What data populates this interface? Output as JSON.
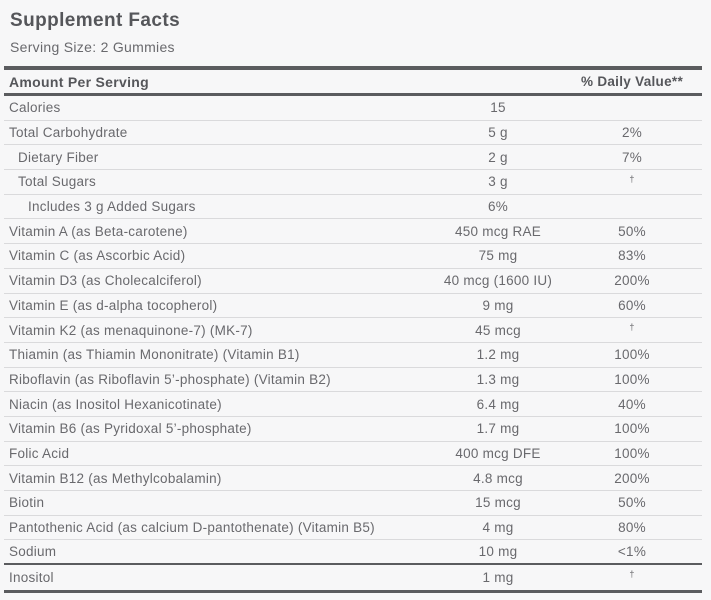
{
  "label": {
    "title": "Supplement Facts",
    "serving_size": "Serving Size: 2 Gummies",
    "header": {
      "amount": "Amount Per Serving",
      "dv": "% Daily Value**"
    },
    "rows": [
      {
        "name": "Calories",
        "amount": "15",
        "dv": "",
        "indent": 0
      },
      {
        "name": "Total Carbohydrate",
        "amount": "5 g",
        "dv": "2%",
        "indent": 0
      },
      {
        "name": "Dietary Fiber",
        "amount": "2 g",
        "dv": "7%",
        "indent": 1
      },
      {
        "name": "Total Sugars",
        "amount": "3 g",
        "dv": "†",
        "indent": 1
      },
      {
        "name": "Includes 3 g Added Sugars",
        "amount": "6%",
        "dv": "",
        "indent": 2
      },
      {
        "name": "Vitamin A (as Beta-carotene)",
        "amount": "450 mcg RAE",
        "dv": "50%",
        "indent": 0
      },
      {
        "name": "Vitamin C (as Ascorbic Acid)",
        "amount": "75 mg",
        "dv": "83%",
        "indent": 0
      },
      {
        "name": "Vitamin D3 (as Cholecalciferol)",
        "amount": "40 mcg (1600 IU)",
        "dv": "200%",
        "indent": 0
      },
      {
        "name": "Vitamin E (as d-alpha tocopherol)",
        "amount": "9 mg",
        "dv": "60%",
        "indent": 0
      },
      {
        "name": "Vitamin K2 (as menaquinone-7) (MK-7)",
        "amount": "45 mcg",
        "dv": "†",
        "indent": 0
      },
      {
        "name": "Thiamin (as Thiamin Mononitrate) (Vitamin B1)",
        "amount": "1.2 mg",
        "dv": "100%",
        "indent": 0
      },
      {
        "name": "Riboflavin (as Riboflavin 5’-phosphate) (Vitamin B2)",
        "amount": "1.3 mg",
        "dv": "100%",
        "indent": 0
      },
      {
        "name": "Niacin (as Inositol Hexanicotinate)",
        "amount": "6.4 mg",
        "dv": "40%",
        "indent": 0
      },
      {
        "name": "Vitamin B6 (as Pyridoxal 5’-phosphate)",
        "amount": "1.7 mg",
        "dv": "100%",
        "indent": 0
      },
      {
        "name": "Folic Acid",
        "amount": "400 mcg DFE",
        "dv": "100%",
        "indent": 0
      },
      {
        "name": "Vitamin B12 (as Methylcobalamin)",
        "amount": "4.8 mcg",
        "dv": "200%",
        "indent": 0
      },
      {
        "name": "Biotin",
        "amount": "15 mcg",
        "dv": "50%",
        "indent": 0
      },
      {
        "name": "Pantothenic Acid (as calcium D-pantothenate) (Vitamin B5)",
        "amount": "4 mg",
        "dv": "80%",
        "indent": 0
      },
      {
        "name": "Sodium",
        "amount": "10 mg",
        "dv": "<1%",
        "indent": 0,
        "thick_below": true
      },
      {
        "name": "Inositol",
        "amount": "1 mg",
        "dv": "†",
        "indent": 0
      }
    ],
    "colors": {
      "background": "#f7f7f8",
      "bar": "#5b5c5f",
      "heading_text": "#55565a",
      "body_text": "#69696d",
      "separator": "#dadadc"
    }
  }
}
